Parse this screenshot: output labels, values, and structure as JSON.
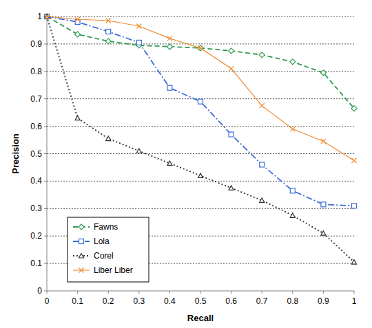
{
  "chart_data": {
    "type": "line",
    "x_label": "Recall",
    "y_label": "Precision",
    "x": [
      0,
      0.1,
      0.2,
      0.3,
      0.4,
      0.5,
      0.6,
      0.7,
      0.8,
      0.9,
      1
    ],
    "series": [
      {
        "name": "Fawns",
        "color": "#2e9a50",
        "marker": "diamond",
        "line_style": "dashed",
        "values": [
          1.0,
          0.935,
          0.91,
          0.895,
          0.89,
          0.885,
          0.875,
          0.86,
          0.835,
          0.795,
          0.665
        ]
      },
      {
        "name": "Lola",
        "color": "#3a6fd8",
        "marker": "square",
        "line_style": "dashdot",
        "values": [
          1.0,
          0.98,
          0.945,
          0.905,
          0.74,
          0.69,
          0.57,
          0.46,
          0.365,
          0.315,
          0.31
        ]
      },
      {
        "name": "Corel",
        "color": "#333333",
        "marker": "triangle",
        "line_style": "dotted",
        "values": [
          1.0,
          0.63,
          0.555,
          0.51,
          0.465,
          0.42,
          0.375,
          0.33,
          0.275,
          0.21,
          0.105
        ]
      },
      {
        "name": "Liber Liber",
        "color": "#f28a30",
        "marker": "x",
        "line_style": "solid",
        "values": [
          1.0,
          0.99,
          0.985,
          0.965,
          0.92,
          0.885,
          0.81,
          0.675,
          0.59,
          0.545,
          0.475
        ]
      }
    ],
    "xlim": [
      0,
      1
    ],
    "ylim": [
      0,
      1
    ],
    "xticks": [
      0,
      0.1,
      0.2,
      0.3,
      0.4,
      0.5,
      0.6,
      0.7,
      0.8,
      0.9,
      1
    ],
    "yticks": [
      0,
      0.1,
      0.2,
      0.3,
      0.4,
      0.5,
      0.6,
      0.7,
      0.8,
      0.9,
      1
    ],
    "grid": true,
    "legend": "lower left"
  }
}
